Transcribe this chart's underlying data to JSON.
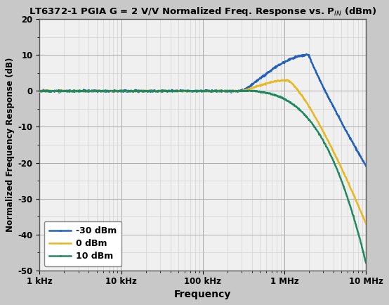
{
  "title": "LT6372-1 PGIA G = 2 V/V Normalized Freq. Response vs. P$_{IN}$ (dBm)",
  "xlabel": "Frequency",
  "ylabel": "Normalized Frequency Response (dB)",
  "xlim_log": [
    1000,
    10000000
  ],
  "ylim": [
    -50,
    20
  ],
  "yticks": [
    20,
    10,
    0,
    -10,
    -20,
    -30,
    -40,
    -50
  ],
  "xtick_labels": [
    "1 kHz",
    "10 kHz",
    "100 kHz",
    "1 MHz",
    "10 MHz"
  ],
  "xtick_positions": [
    1000,
    10000,
    100000,
    1000000,
    10000000
  ],
  "bg_color": "#f0f0f0",
  "fig_color": "#c8c8c8",
  "grid_major_color": "#aaaaaa",
  "grid_minor_color": "#cccccc",
  "line_color_blue": "#2060c0",
  "line_color_yellow": "#e8b820",
  "line_color_green": "#208860",
  "legend_labels": [
    "-30 dBm",
    "0 dBm",
    "10 dBm"
  ],
  "marker_size": 2.0,
  "linewidth": 1.8
}
